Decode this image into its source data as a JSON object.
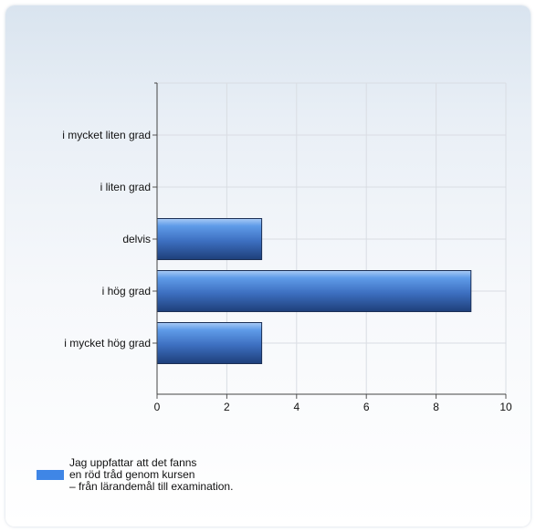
{
  "chart_data": {
    "type": "bar",
    "orientation": "horizontal",
    "categories": [
      "i mycket liten grad",
      "i liten grad",
      "delvis",
      "i hög grad",
      "i mycket hög grad"
    ],
    "series": [
      {
        "name": "Jag uppfattar att det fanns en röd tråd genom kursen – från lärandemål till examination.",
        "values": [
          0,
          0,
          3,
          9,
          3
        ]
      }
    ],
    "xlim": [
      0,
      10
    ],
    "xticks": [
      "0",
      "2",
      "4",
      "6",
      "8",
      "10"
    ],
    "grid": true,
    "legend_position": "bottom-left",
    "bar_color": "#3f86e6",
    "title": "",
    "xlabel": "",
    "ylabel": ""
  },
  "legend": {
    "lines": [
      "Jag uppfattar att det fanns",
      "en röd tråd genom kursen",
      "– från lärandemål till examination."
    ]
  }
}
